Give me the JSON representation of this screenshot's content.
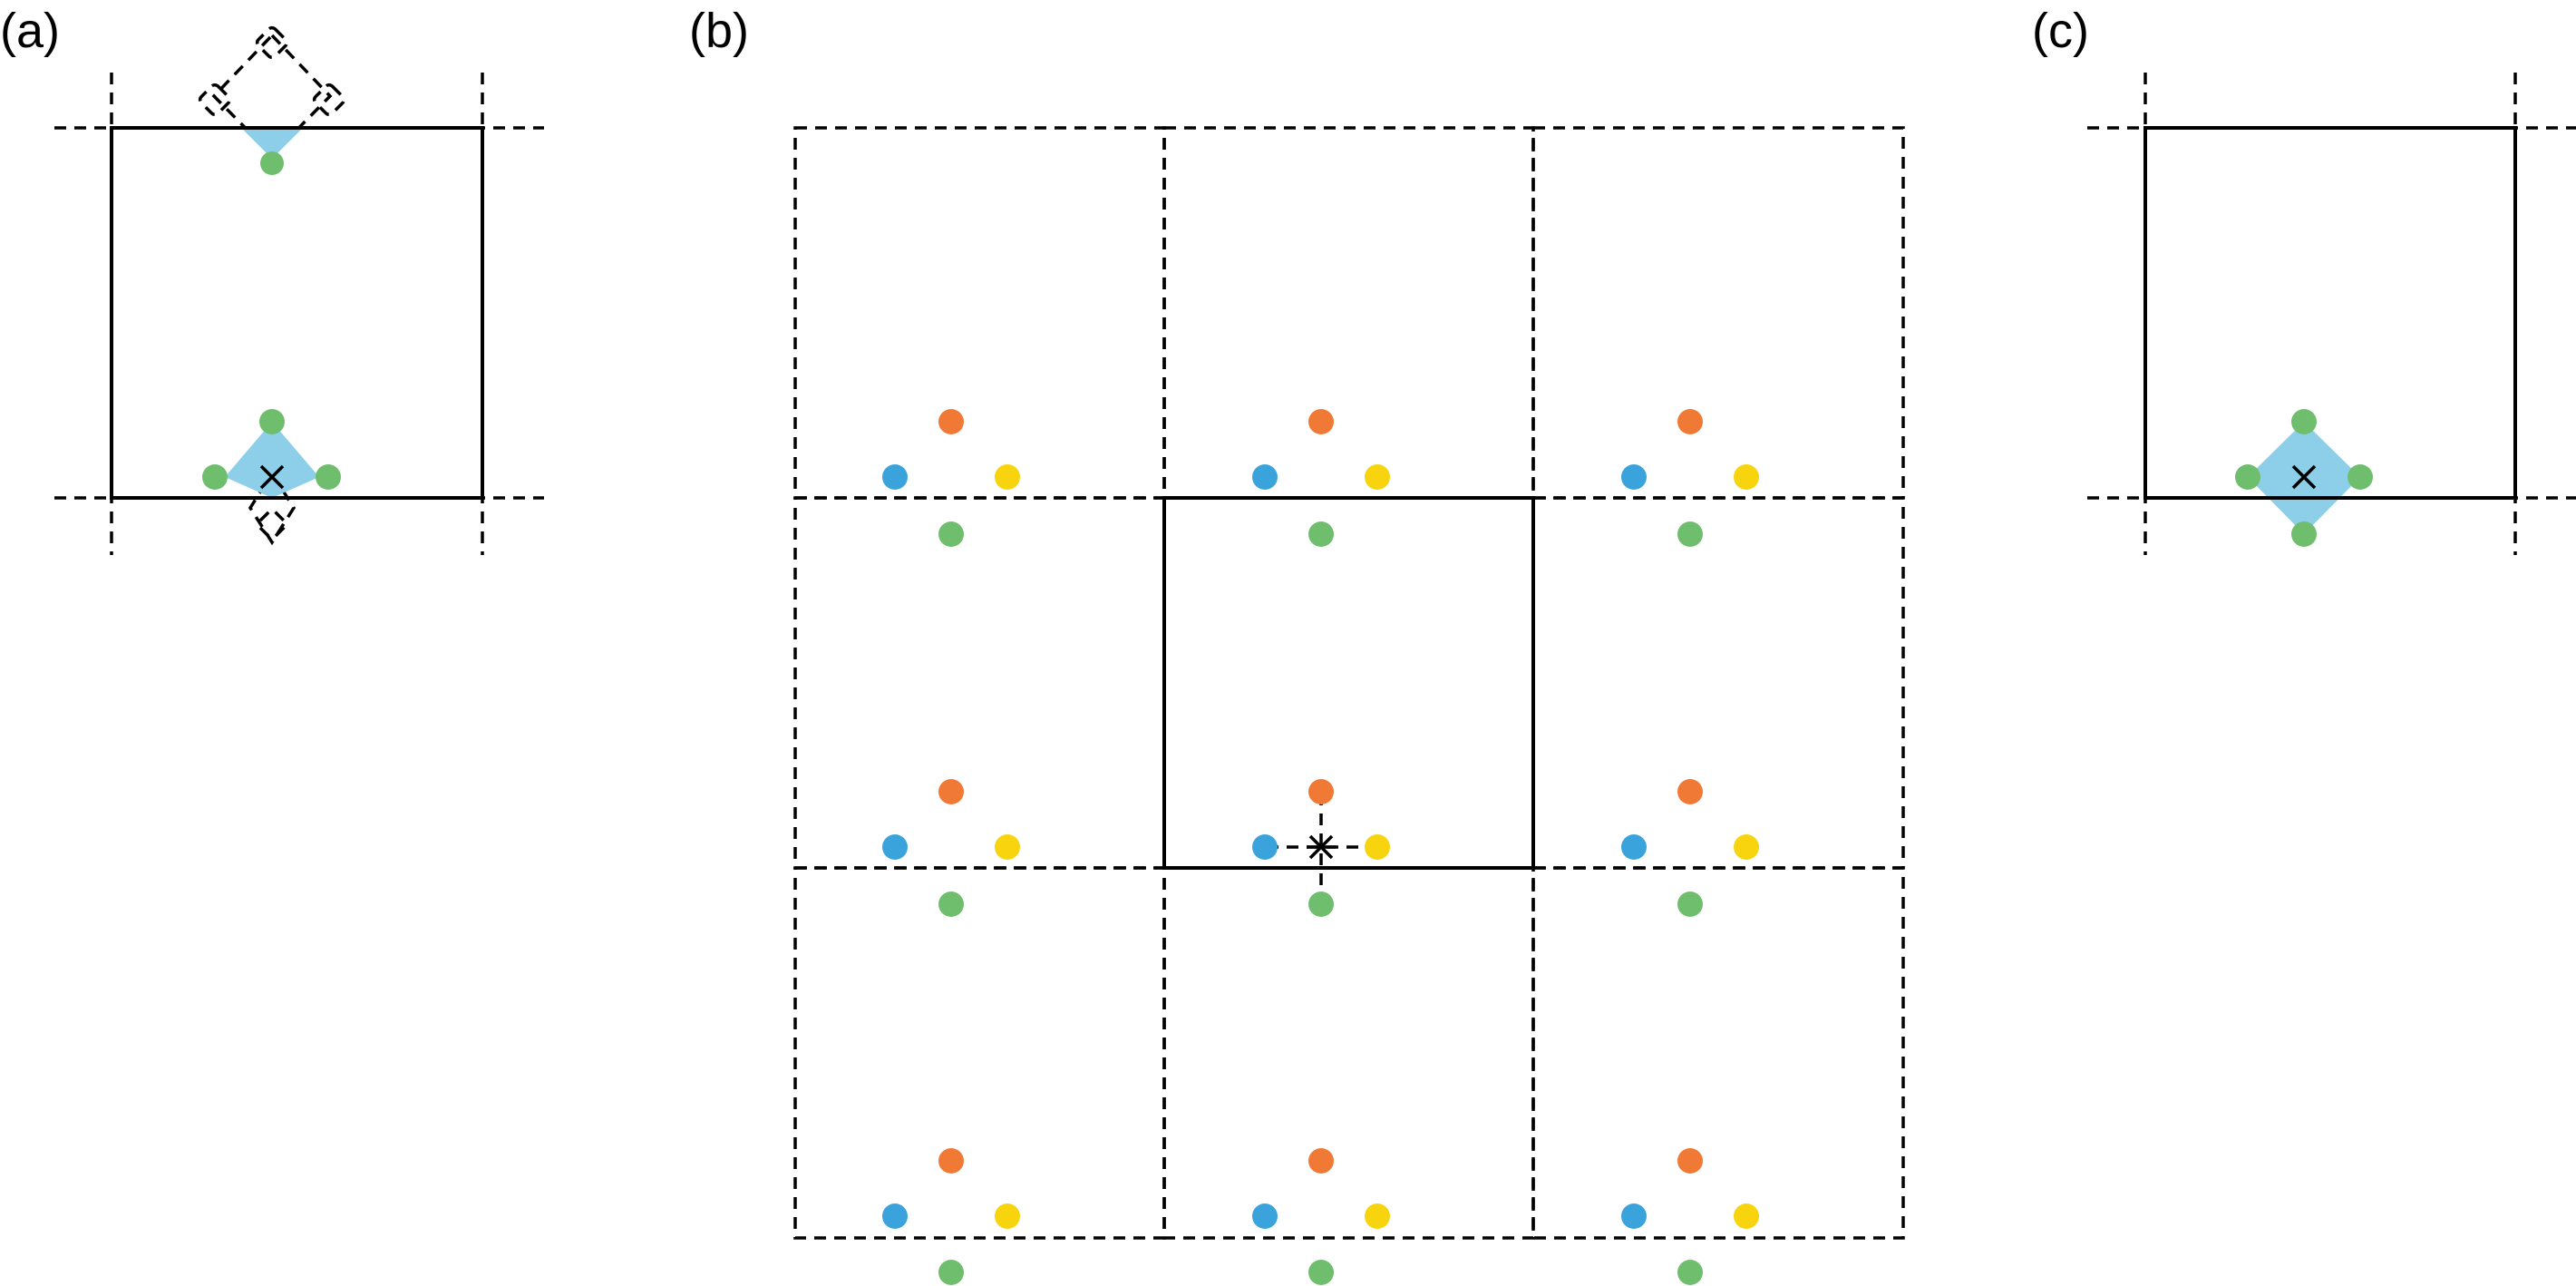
{
  "panels": [
    {
      "id": "a",
      "label": "(a)"
    },
    {
      "id": "b",
      "label": "(b)"
    },
    {
      "id": "c",
      "label": "(c)"
    }
  ],
  "colors": {
    "orange": "#F07A35",
    "blue": "#3AA3DB",
    "yellow": "#F7D40E",
    "green": "#6FBE6E",
    "diamond_fill": "#8DCFE8",
    "line": "#000000"
  },
  "markers": {
    "panel_a_center": "cross",
    "panel_b_center": "asterisk",
    "panel_c_center": "cross"
  }
}
